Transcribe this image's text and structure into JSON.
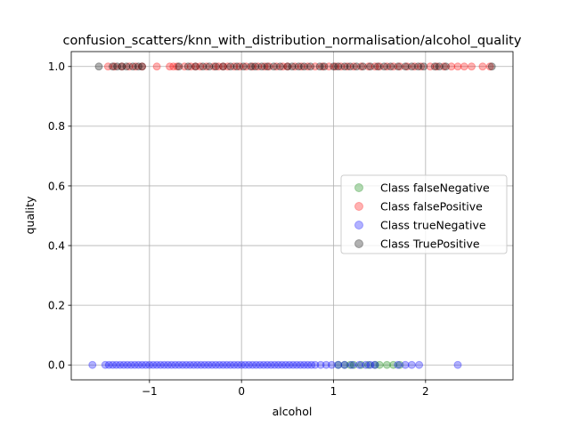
{
  "chart_data": {
    "type": "scatter",
    "title": "confusion_scatters/knn_with_distribution_normalisation/alcohol_quality",
    "xlabel": "alcohol",
    "ylabel": "quality",
    "xlim": [
      -1.85,
      2.95
    ],
    "ylim": [
      -0.05,
      1.05
    ],
    "xticks": [
      -1,
      0,
      1,
      2
    ],
    "xtick_labels": [
      "−1",
      "0",
      "1",
      "2"
    ],
    "yticks": [
      0.0,
      0.2,
      0.4,
      0.6,
      0.8,
      1.0
    ],
    "ytick_labels": [
      "0.0",
      "0.2",
      "0.4",
      "0.6",
      "0.8",
      "1.0"
    ],
    "grid": true,
    "legend_position": "center-right",
    "series": [
      {
        "name": "Class falseNegative",
        "color": "#008000",
        "alpha": 0.3,
        "x": [
          1.05,
          1.12,
          1.18,
          1.22,
          1.3,
          1.38,
          1.45,
          1.5,
          1.58,
          1.65,
          1.72
        ],
        "y": [
          0,
          0,
          0,
          0,
          0,
          0,
          0,
          0,
          0,
          0,
          0
        ]
      },
      {
        "name": "Class falsePositive",
        "color": "#ff0000",
        "alpha": 0.3,
        "x": [
          -1.45,
          -1.38,
          -1.3,
          -1.22,
          -1.15,
          -1.08,
          -0.92,
          -0.78,
          -0.74,
          -0.7,
          -0.62,
          -0.55,
          -0.5,
          -0.45,
          -0.38,
          -0.3,
          -0.25,
          -0.2,
          -0.15,
          -0.08,
          -0.02,
          0.05,
          0.12,
          0.18,
          0.25,
          0.3,
          0.38,
          0.45,
          0.5,
          0.58,
          0.65,
          0.72,
          0.8,
          0.88,
          0.95,
          1.02,
          1.08,
          1.15,
          1.22,
          1.3,
          1.38,
          1.45,
          1.5,
          1.58,
          1.65,
          1.72,
          1.8,
          1.88,
          1.95,
          2.05,
          2.12,
          2.2,
          2.28,
          2.35,
          2.42,
          2.5,
          2.62,
          2.7
        ],
        "y": [
          1,
          1,
          1,
          1,
          1,
          1,
          1,
          1,
          1,
          1,
          1,
          1,
          1,
          1,
          1,
          1,
          1,
          1,
          1,
          1,
          1,
          1,
          1,
          1,
          1,
          1,
          1,
          1,
          1,
          1,
          1,
          1,
          1,
          1,
          1,
          1,
          1,
          1,
          1,
          1,
          1,
          1,
          1,
          1,
          1,
          1,
          1,
          1,
          1,
          1,
          1,
          1,
          1,
          1,
          1,
          1,
          1,
          1
        ]
      },
      {
        "name": "Class trueNegative",
        "color": "#0000ff",
        "alpha": 0.3,
        "x": [
          -1.62,
          -1.48,
          -1.44,
          -1.4,
          -1.36,
          -1.32,
          -1.28,
          -1.24,
          -1.2,
          -1.16,
          -1.12,
          -1.08,
          -1.04,
          -1.0,
          -0.96,
          -0.92,
          -0.88,
          -0.84,
          -0.8,
          -0.76,
          -0.72,
          -0.68,
          -0.64,
          -0.6,
          -0.56,
          -0.52,
          -0.48,
          -0.44,
          -0.4,
          -0.36,
          -0.32,
          -0.28,
          -0.24,
          -0.2,
          -0.16,
          -0.12,
          -0.08,
          -0.04,
          0.0,
          0.04,
          0.08,
          0.12,
          0.16,
          0.2,
          0.24,
          0.28,
          0.32,
          0.36,
          0.4,
          0.44,
          0.48,
          0.52,
          0.56,
          0.6,
          0.64,
          0.68,
          0.72,
          0.76,
          0.8,
          0.86,
          0.92,
          0.98,
          1.05,
          1.12,
          1.2,
          1.28,
          1.35,
          1.4,
          1.45,
          1.7,
          1.78,
          1.85,
          1.93,
          2.35
        ],
        "y": [
          0,
          0,
          0,
          0,
          0,
          0,
          0,
          0,
          0,
          0,
          0,
          0,
          0,
          0,
          0,
          0,
          0,
          0,
          0,
          0,
          0,
          0,
          0,
          0,
          0,
          0,
          0,
          0,
          0,
          0,
          0,
          0,
          0,
          0,
          0,
          0,
          0,
          0,
          0,
          0,
          0,
          0,
          0,
          0,
          0,
          0,
          0,
          0,
          0,
          0,
          0,
          0,
          0,
          0,
          0,
          0,
          0,
          0,
          0,
          0,
          0,
          0,
          0,
          0,
          0,
          0,
          0,
          0,
          0,
          0,
          0,
          0,
          0,
          0
        ]
      },
      {
        "name": "Class TruePositive",
        "color": "#000000",
        "alpha": 0.3,
        "x": [
          -1.55,
          -1.4,
          -1.35,
          -1.3,
          -1.25,
          -1.18,
          -1.12,
          -1.08,
          -0.68,
          -0.58,
          -0.5,
          -0.42,
          -0.35,
          -0.28,
          -0.2,
          -0.12,
          -0.05,
          0.02,
          0.1,
          0.15,
          0.22,
          0.28,
          0.35,
          0.42,
          0.5,
          0.55,
          0.62,
          0.68,
          0.75,
          0.85,
          0.9,
          1.0,
          1.05,
          1.12,
          1.18,
          1.25,
          1.32,
          1.4,
          1.48,
          1.55,
          1.62,
          1.7,
          1.78,
          1.85,
          1.92,
          1.98,
          2.1,
          2.15,
          2.22,
          2.72
        ],
        "y": [
          1,
          1,
          1,
          1,
          1,
          1,
          1,
          1,
          1,
          1,
          1,
          1,
          1,
          1,
          1,
          1,
          1,
          1,
          1,
          1,
          1,
          1,
          1,
          1,
          1,
          1,
          1,
          1,
          1,
          1,
          1,
          1,
          1,
          1,
          1,
          1,
          1,
          1,
          1,
          1,
          1,
          1,
          1,
          1,
          1,
          1,
          1,
          1,
          1,
          1
        ]
      }
    ]
  }
}
